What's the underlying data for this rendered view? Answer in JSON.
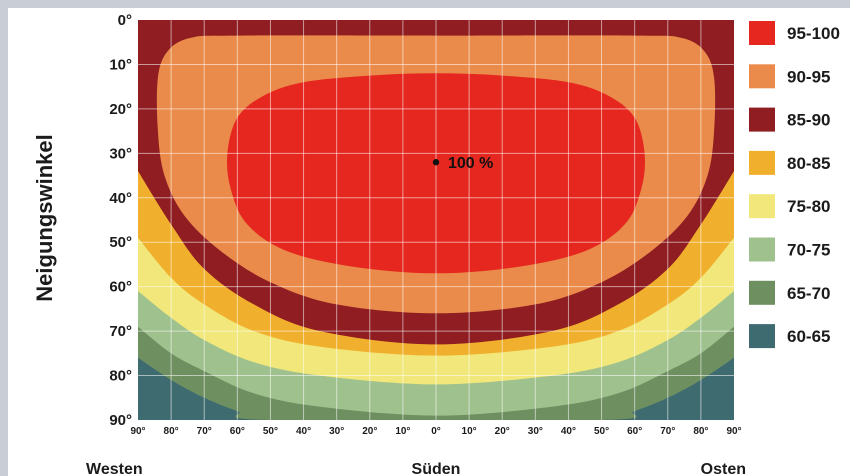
{
  "chart_data": {
    "type": "heatmap",
    "title": "",
    "ylabel": "Neigungswinkel",
    "xlabel": "",
    "x_direction_labels": [
      {
        "label": "Westen",
        "x": -90
      },
      {
        "label": "Süden",
        "x": 0
      },
      {
        "label": "Osten",
        "x": 90
      }
    ],
    "x_tick_labels": [
      "90°",
      "80°",
      "70°",
      "60°",
      "50°",
      "40°",
      "30°",
      "20°",
      "10°",
      "0°",
      "10°",
      "20°",
      "30°",
      "40°",
      "50°",
      "60°",
      "70°",
      "80°",
      "90°"
    ],
    "x_ticks": [
      -90,
      -80,
      -70,
      -60,
      -50,
      -40,
      -30,
      -20,
      -10,
      0,
      10,
      20,
      30,
      40,
      50,
      60,
      70,
      80,
      90
    ],
    "y_tick_labels": [
      "0°",
      "10°",
      "20°",
      "30°",
      "40°",
      "50°",
      "60°",
      "70°",
      "80°",
      "90°"
    ],
    "y_ticks": [
      0,
      10,
      20,
      30,
      40,
      50,
      60,
      70,
      80,
      90
    ],
    "xlim": [
      -90,
      90
    ],
    "ylim": [
      0,
      90
    ],
    "grid": true,
    "legend_position": "right",
    "legend": [
      {
        "label": "95-100",
        "color": "#e5271f"
      },
      {
        "label": "90-95",
        "color": "#ea8b4b"
      },
      {
        "label": "85-90",
        "color": "#8f1d22"
      },
      {
        "label": "80-85",
        "color": "#f0b02d"
      },
      {
        "label": "75-80",
        "color": "#f1e77a"
      },
      {
        "label": "70-75",
        "color": "#9fc18e"
      },
      {
        "label": "65-70",
        "color": "#6e8f60"
      },
      {
        "label": "60-65",
        "color": "#3e6b70"
      }
    ],
    "annotation": {
      "text": "100 %",
      "x": 0,
      "y": 32
    },
    "contours": [
      {
        "range": "95-100",
        "color": "#e5271f",
        "polygon": [
          [
            0,
            12
          ],
          [
            -20,
            12.5
          ],
          [
            -40,
            14
          ],
          [
            -52,
            17
          ],
          [
            -60,
            22
          ],
          [
            -63,
            30
          ],
          [
            -62,
            38
          ],
          [
            -57,
            46
          ],
          [
            -45,
            52
          ],
          [
            -25,
            55.5
          ],
          [
            0,
            57
          ],
          [
            25,
            55.5
          ],
          [
            45,
            52
          ],
          [
            57,
            46
          ],
          [
            62,
            38
          ],
          [
            63,
            30
          ],
          [
            60,
            22
          ],
          [
            52,
            17
          ],
          [
            40,
            14
          ],
          [
            20,
            12.5
          ]
        ]
      },
      {
        "range": "90-95",
        "color": "#ea8b4b",
        "polygon": [
          [
            -60,
            3.5
          ],
          [
            0,
            3.5
          ],
          [
            60,
            3.5
          ],
          [
            74,
            4
          ],
          [
            81,
            7
          ],
          [
            84,
            13
          ],
          [
            84,
            25
          ],
          [
            82,
            35
          ],
          [
            76,
            44
          ],
          [
            65,
            52
          ],
          [
            50,
            59
          ],
          [
            30,
            64
          ],
          [
            0,
            66
          ],
          [
            -30,
            64
          ],
          [
            -50,
            59
          ],
          [
            -65,
            52
          ],
          [
            -76,
            44
          ],
          [
            -82,
            35
          ],
          [
            -84,
            25
          ],
          [
            -84,
            13
          ],
          [
            -81,
            7
          ],
          [
            -74,
            4
          ]
        ]
      },
      {
        "range": "85-90",
        "color": "#8f1d22",
        "polygon": [
          [
            -90,
            0
          ],
          [
            90,
            0
          ],
          [
            90,
            34
          ],
          [
            80,
            46
          ],
          [
            70,
            56
          ],
          [
            55,
            64
          ],
          [
            35,
            70
          ],
          [
            0,
            73
          ],
          [
            -35,
            70
          ],
          [
            -55,
            64
          ],
          [
            -70,
            56
          ],
          [
            -80,
            46
          ],
          [
            -90,
            34
          ]
        ]
      },
      {
        "range": "80-85",
        "color": "#f0b02d",
        "polygon": [
          [
            -90,
            0
          ],
          [
            90,
            0
          ],
          [
            90,
            49
          ],
          [
            80,
            58
          ],
          [
            70,
            64
          ],
          [
            55,
            70
          ],
          [
            35,
            73.5
          ],
          [
            0,
            75.5
          ],
          [
            -35,
            73.5
          ],
          [
            -55,
            70
          ],
          [
            -70,
            64
          ],
          [
            -80,
            58
          ],
          [
            -90,
            49
          ]
        ]
      },
      {
        "range": "75-80",
        "color": "#f1e77a",
        "polygon": [
          [
            -90,
            0
          ],
          [
            90,
            0
          ],
          [
            90,
            61
          ],
          [
            80,
            67
          ],
          [
            70,
            72
          ],
          [
            55,
            77
          ],
          [
            35,
            80
          ],
          [
            0,
            82
          ],
          [
            -35,
            80
          ],
          [
            -55,
            77
          ],
          [
            -70,
            72
          ],
          [
            -80,
            67
          ],
          [
            -90,
            61
          ]
        ]
      },
      {
        "range": "70-75",
        "color": "#9fc18e",
        "polygon": [
          [
            -90,
            0
          ],
          [
            90,
            0
          ],
          [
            90,
            69
          ],
          [
            80,
            75
          ],
          [
            70,
            79
          ],
          [
            55,
            84
          ],
          [
            35,
            87
          ],
          [
            0,
            89
          ],
          [
            -35,
            87
          ],
          [
            -55,
            84
          ],
          [
            -70,
            79
          ],
          [
            -80,
            75
          ],
          [
            -90,
            69
          ]
        ]
      },
      {
        "range": "65-70",
        "color": "#6e8f60",
        "polygon": [
          [
            -90,
            0
          ],
          [
            90,
            0
          ],
          [
            90,
            76
          ],
          [
            80,
            81
          ],
          [
            70,
            85
          ],
          [
            60,
            88
          ],
          [
            50,
            90
          ],
          [
            -50,
            90
          ],
          [
            -60,
            88
          ],
          [
            -70,
            85
          ],
          [
            -80,
            81
          ],
          [
            -90,
            76
          ]
        ]
      },
      {
        "range": "60-65",
        "color": "#3e6b70",
        "polygon": [
          [
            -90,
            0
          ],
          [
            90,
            0
          ],
          [
            90,
            90
          ],
          [
            -90,
            90
          ]
        ]
      }
    ]
  }
}
